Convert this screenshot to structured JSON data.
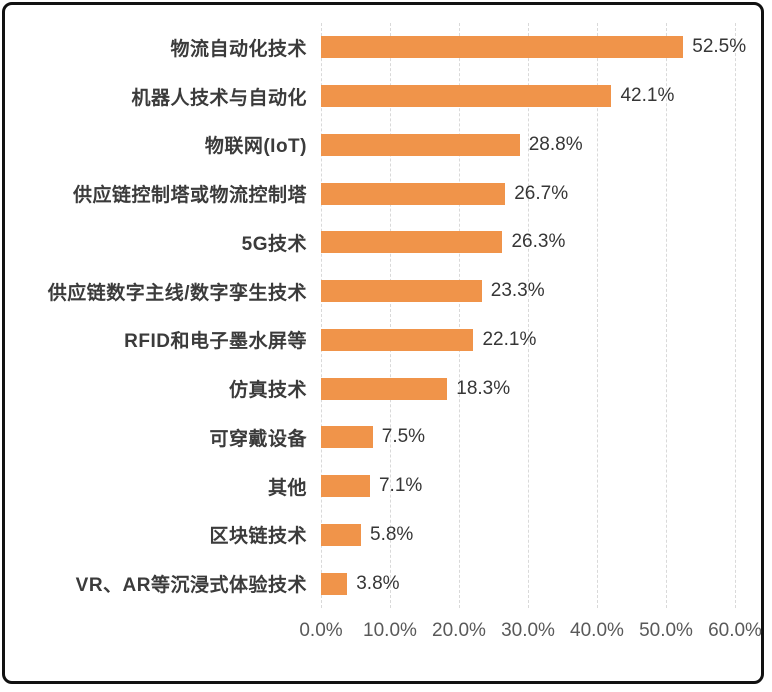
{
  "chart_data": {
    "type": "bar",
    "orientation": "horizontal",
    "title": "",
    "categories": [
      "物流自动化技术",
      "机器人技术与自动化",
      "物联网(IoT)",
      "供应链控制塔或物流控制塔",
      "5G技术",
      "供应链数字主线/数字孪生技术",
      "RFID和电子墨水屏等",
      "仿真技术",
      "可穿戴设备",
      "其他",
      "区块链技术",
      "VR、AR等沉浸式体验技术"
    ],
    "values": [
      52.5,
      42.1,
      28.8,
      26.7,
      26.3,
      23.3,
      22.1,
      18.3,
      7.5,
      7.1,
      5.8,
      3.8
    ],
    "value_labels": [
      "52.5%",
      "42.1%",
      "28.8%",
      "26.7%",
      "26.3%",
      "23.3%",
      "22.1%",
      "18.3%",
      "7.5%",
      "7.1%",
      "5.8%",
      "3.8%"
    ],
    "x_ticks": [
      "0.0%",
      "10.0%",
      "20.0%",
      "30.0%",
      "40.0%",
      "50.0%",
      "60.0%"
    ],
    "xlim": [
      0,
      60
    ],
    "grid": true,
    "legend": false,
    "colors": {
      "bar": "#F0944A",
      "category_label": "#3B3B3B",
      "value_label": "#363636",
      "axis_label": "#595959",
      "gridline": "#D9D9D9",
      "frame_border": "#111111",
      "background": "#FFFFFF"
    }
  }
}
